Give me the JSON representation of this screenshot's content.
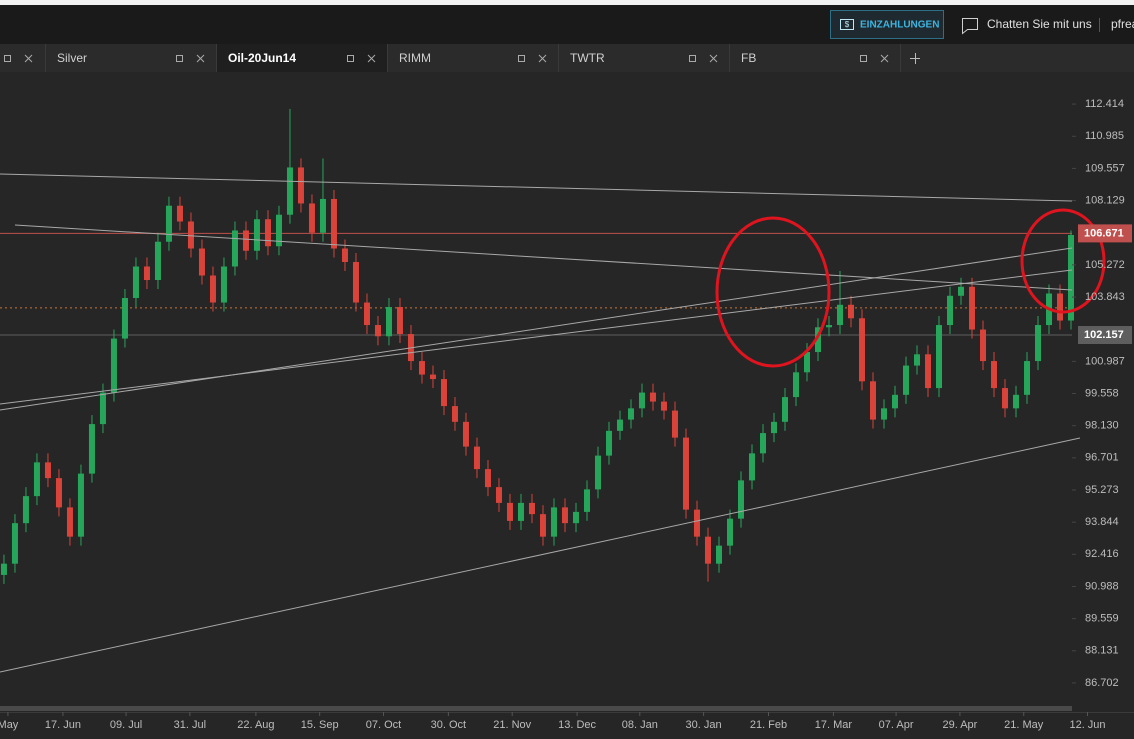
{
  "header": {
    "deposit_icon": "$",
    "deposit_button": "EINZAHLUNGEN",
    "chat": "Chatten Sie mit uns",
    "user": "pfrea"
  },
  "tabs": [
    "Silver",
    "Oil-20Jun14",
    "RIMM",
    "TWTR",
    "FB"
  ],
  "active_tab": 1,
  "chart_data": {
    "type": "candlestick",
    "up_color": "#26a65b",
    "down_color": "#d9433a",
    "xlim": [
      -0.36,
      97.09
    ],
    "ylim": [
      85.5,
      113.84
    ],
    "grid": false,
    "xticks": [
      {
        "value": 0.36,
        "label": "May"
      },
      {
        "value": 5.36,
        "label": "17. Jun"
      },
      {
        "value": 11.1,
        "label": "09. Jul"
      },
      {
        "value": 16.9,
        "label": "31. Jul"
      },
      {
        "value": 22.9,
        "label": "22. Aug"
      },
      {
        "value": 28.7,
        "label": "15. Sep"
      },
      {
        "value": 34.5,
        "label": "07. Oct"
      },
      {
        "value": 40.4,
        "label": "30. Oct"
      },
      {
        "value": 46.2,
        "label": "21. Nov"
      },
      {
        "value": 52.1,
        "label": "13. Dec"
      },
      {
        "value": 57.8,
        "label": "08. Jan"
      },
      {
        "value": 63.6,
        "label": "30. Jan"
      },
      {
        "value": 69.5,
        "label": "21. Feb"
      },
      {
        "value": 75.4,
        "label": "17. Mar"
      },
      {
        "value": 81.1,
        "label": "07. Apr"
      },
      {
        "value": 86.9,
        "label": "29. Apr"
      },
      {
        "value": 92.7,
        "label": "21. May"
      },
      {
        "value": 98.5,
        "label": "12. Jun"
      }
    ],
    "yticks": [
      112.414,
      110.985,
      109.557,
      108.129,
      105.272,
      103.843,
      100.987,
      99.558,
      {
        "value": 98.13,
        "label": "98.130"
      },
      96.701,
      95.273,
      93.844,
      92.416,
      90.988,
      89.559,
      88.131,
      86.702
    ],
    "price_labels": [
      {
        "value": 106.671,
        "color": "#c0504d"
      },
      {
        "value": 102.157,
        "color": "#5e5e5e"
      }
    ],
    "reference_line": {
      "value": 103.36,
      "color": "#c87533"
    },
    "open": [
      91.5,
      92.0,
      93.8,
      95.0,
      96.5,
      95.8,
      94.5,
      93.2,
      96.0,
      98.2,
      99.6,
      102.0,
      103.8,
      105.2,
      104.6,
      106.3,
      107.9,
      107.2,
      106.0,
      104.8,
      103.6,
      105.2,
      106.8,
      105.9,
      107.3,
      106.1,
      107.5,
      109.6,
      108.0,
      106.7,
      108.2,
      106.0,
      105.4,
      103.6,
      102.6,
      102.1,
      103.4,
      102.2,
      101.0,
      100.4,
      100.2,
      99.0,
      98.3,
      97.2,
      96.2,
      95.4,
      94.7,
      93.9,
      94.7,
      94.2,
      93.2,
      94.5,
      93.8,
      94.3,
      95.3,
      96.8,
      97.9,
      98.4,
      98.9,
      99.6,
      99.2,
      98.8,
      97.6,
      94.4,
      93.2,
      92.0,
      92.8,
      94.0,
      95.7,
      96.9,
      97.8,
      98.3,
      99.4,
      100.5,
      101.4,
      102.5,
      102.6,
      103.5,
      102.9,
      100.1,
      98.4,
      98.9,
      99.5,
      100.8,
      101.3,
      99.8,
      102.6,
      103.9,
      104.3,
      102.4,
      101.0,
      99.8,
      98.9,
      99.5,
      101.0,
      102.6,
      104.0,
      102.8
    ],
    "high": [
      92.4,
      94.2,
      95.4,
      96.9,
      96.9,
      96.2,
      94.9,
      96.4,
      98.6,
      100.0,
      102.4,
      104.2,
      105.6,
      105.6,
      106.7,
      108.3,
      108.3,
      107.6,
      106.4,
      105.2,
      105.6,
      107.2,
      107.2,
      107.7,
      107.7,
      107.9,
      112.2,
      110.0,
      108.4,
      110.0,
      108.6,
      106.4,
      105.8,
      104.0,
      103.0,
      103.8,
      103.8,
      102.6,
      101.4,
      100.8,
      100.6,
      99.4,
      98.7,
      97.6,
      96.6,
      95.8,
      95.1,
      95.1,
      95.1,
      94.6,
      94.9,
      94.9,
      94.7,
      95.7,
      97.2,
      98.3,
      98.8,
      99.3,
      100.0,
      100.0,
      99.6,
      99.2,
      98.0,
      94.8,
      93.6,
      93.2,
      94.4,
      96.1,
      97.3,
      98.2,
      98.7,
      99.8,
      100.9,
      101.8,
      102.9,
      103.0,
      105.0,
      103.9,
      103.3,
      100.5,
      99.3,
      99.9,
      101.2,
      101.7,
      101.7,
      103.0,
      104.3,
      104.7,
      104.7,
      102.8,
      101.4,
      100.2,
      99.9,
      101.4,
      103.0,
      104.4,
      104.4,
      106.8
    ],
    "low": [
      91.1,
      91.6,
      93.4,
      94.6,
      95.4,
      94.1,
      92.8,
      92.8,
      95.6,
      97.8,
      99.2,
      101.6,
      103.4,
      104.2,
      104.2,
      105.9,
      106.8,
      105.6,
      104.4,
      103.2,
      103.2,
      104.8,
      105.5,
      105.5,
      105.7,
      105.7,
      107.1,
      107.6,
      106.3,
      106.3,
      105.6,
      105.0,
      103.2,
      102.2,
      101.7,
      101.7,
      101.8,
      100.6,
      100.0,
      99.8,
      98.6,
      97.9,
      96.8,
      95.8,
      95.0,
      94.3,
      93.5,
      93.5,
      93.8,
      92.8,
      92.8,
      93.4,
      93.4,
      93.9,
      94.9,
      96.4,
      97.5,
      98.0,
      98.5,
      98.8,
      98.4,
      97.2,
      94.0,
      92.8,
      91.2,
      91.6,
      92.4,
      93.6,
      95.3,
      96.5,
      97.4,
      97.9,
      99.0,
      100.1,
      101.0,
      102.1,
      102.2,
      102.5,
      99.7,
      98.0,
      98.0,
      98.5,
      99.1,
      100.4,
      99.4,
      99.4,
      102.2,
      103.5,
      102.0,
      100.6,
      99.4,
      98.5,
      98.5,
      99.1,
      100.6,
      102.2,
      102.4,
      102.4
    ],
    "close": [
      92.0,
      93.8,
      95.0,
      96.5,
      95.8,
      94.5,
      93.2,
      96.0,
      98.2,
      99.6,
      102.0,
      103.8,
      105.2,
      104.6,
      106.3,
      107.9,
      107.2,
      106.0,
      104.8,
      103.6,
      105.2,
      106.8,
      105.9,
      107.3,
      106.1,
      107.5,
      109.6,
      108.0,
      106.7,
      108.2,
      106.0,
      105.4,
      103.6,
      102.6,
      102.1,
      103.4,
      102.2,
      101.0,
      100.4,
      100.2,
      99.0,
      98.3,
      97.2,
      96.2,
      95.4,
      94.7,
      93.9,
      94.7,
      94.2,
      93.2,
      94.5,
      93.8,
      94.3,
      95.3,
      96.8,
      97.9,
      98.4,
      98.9,
      99.6,
      99.2,
      98.8,
      97.6,
      94.4,
      93.2,
      92.0,
      92.8,
      94.0,
      95.7,
      96.9,
      97.8,
      98.3,
      99.4,
      100.5,
      101.4,
      102.5,
      102.6,
      103.5,
      102.9,
      100.1,
      98.4,
      98.9,
      99.5,
      100.8,
      101.3,
      99.8,
      102.6,
      103.9,
      104.3,
      102.4,
      101.0,
      99.8,
      98.9,
      99.5,
      101.0,
      102.6,
      104.0,
      102.8,
      106.6
    ]
  }
}
